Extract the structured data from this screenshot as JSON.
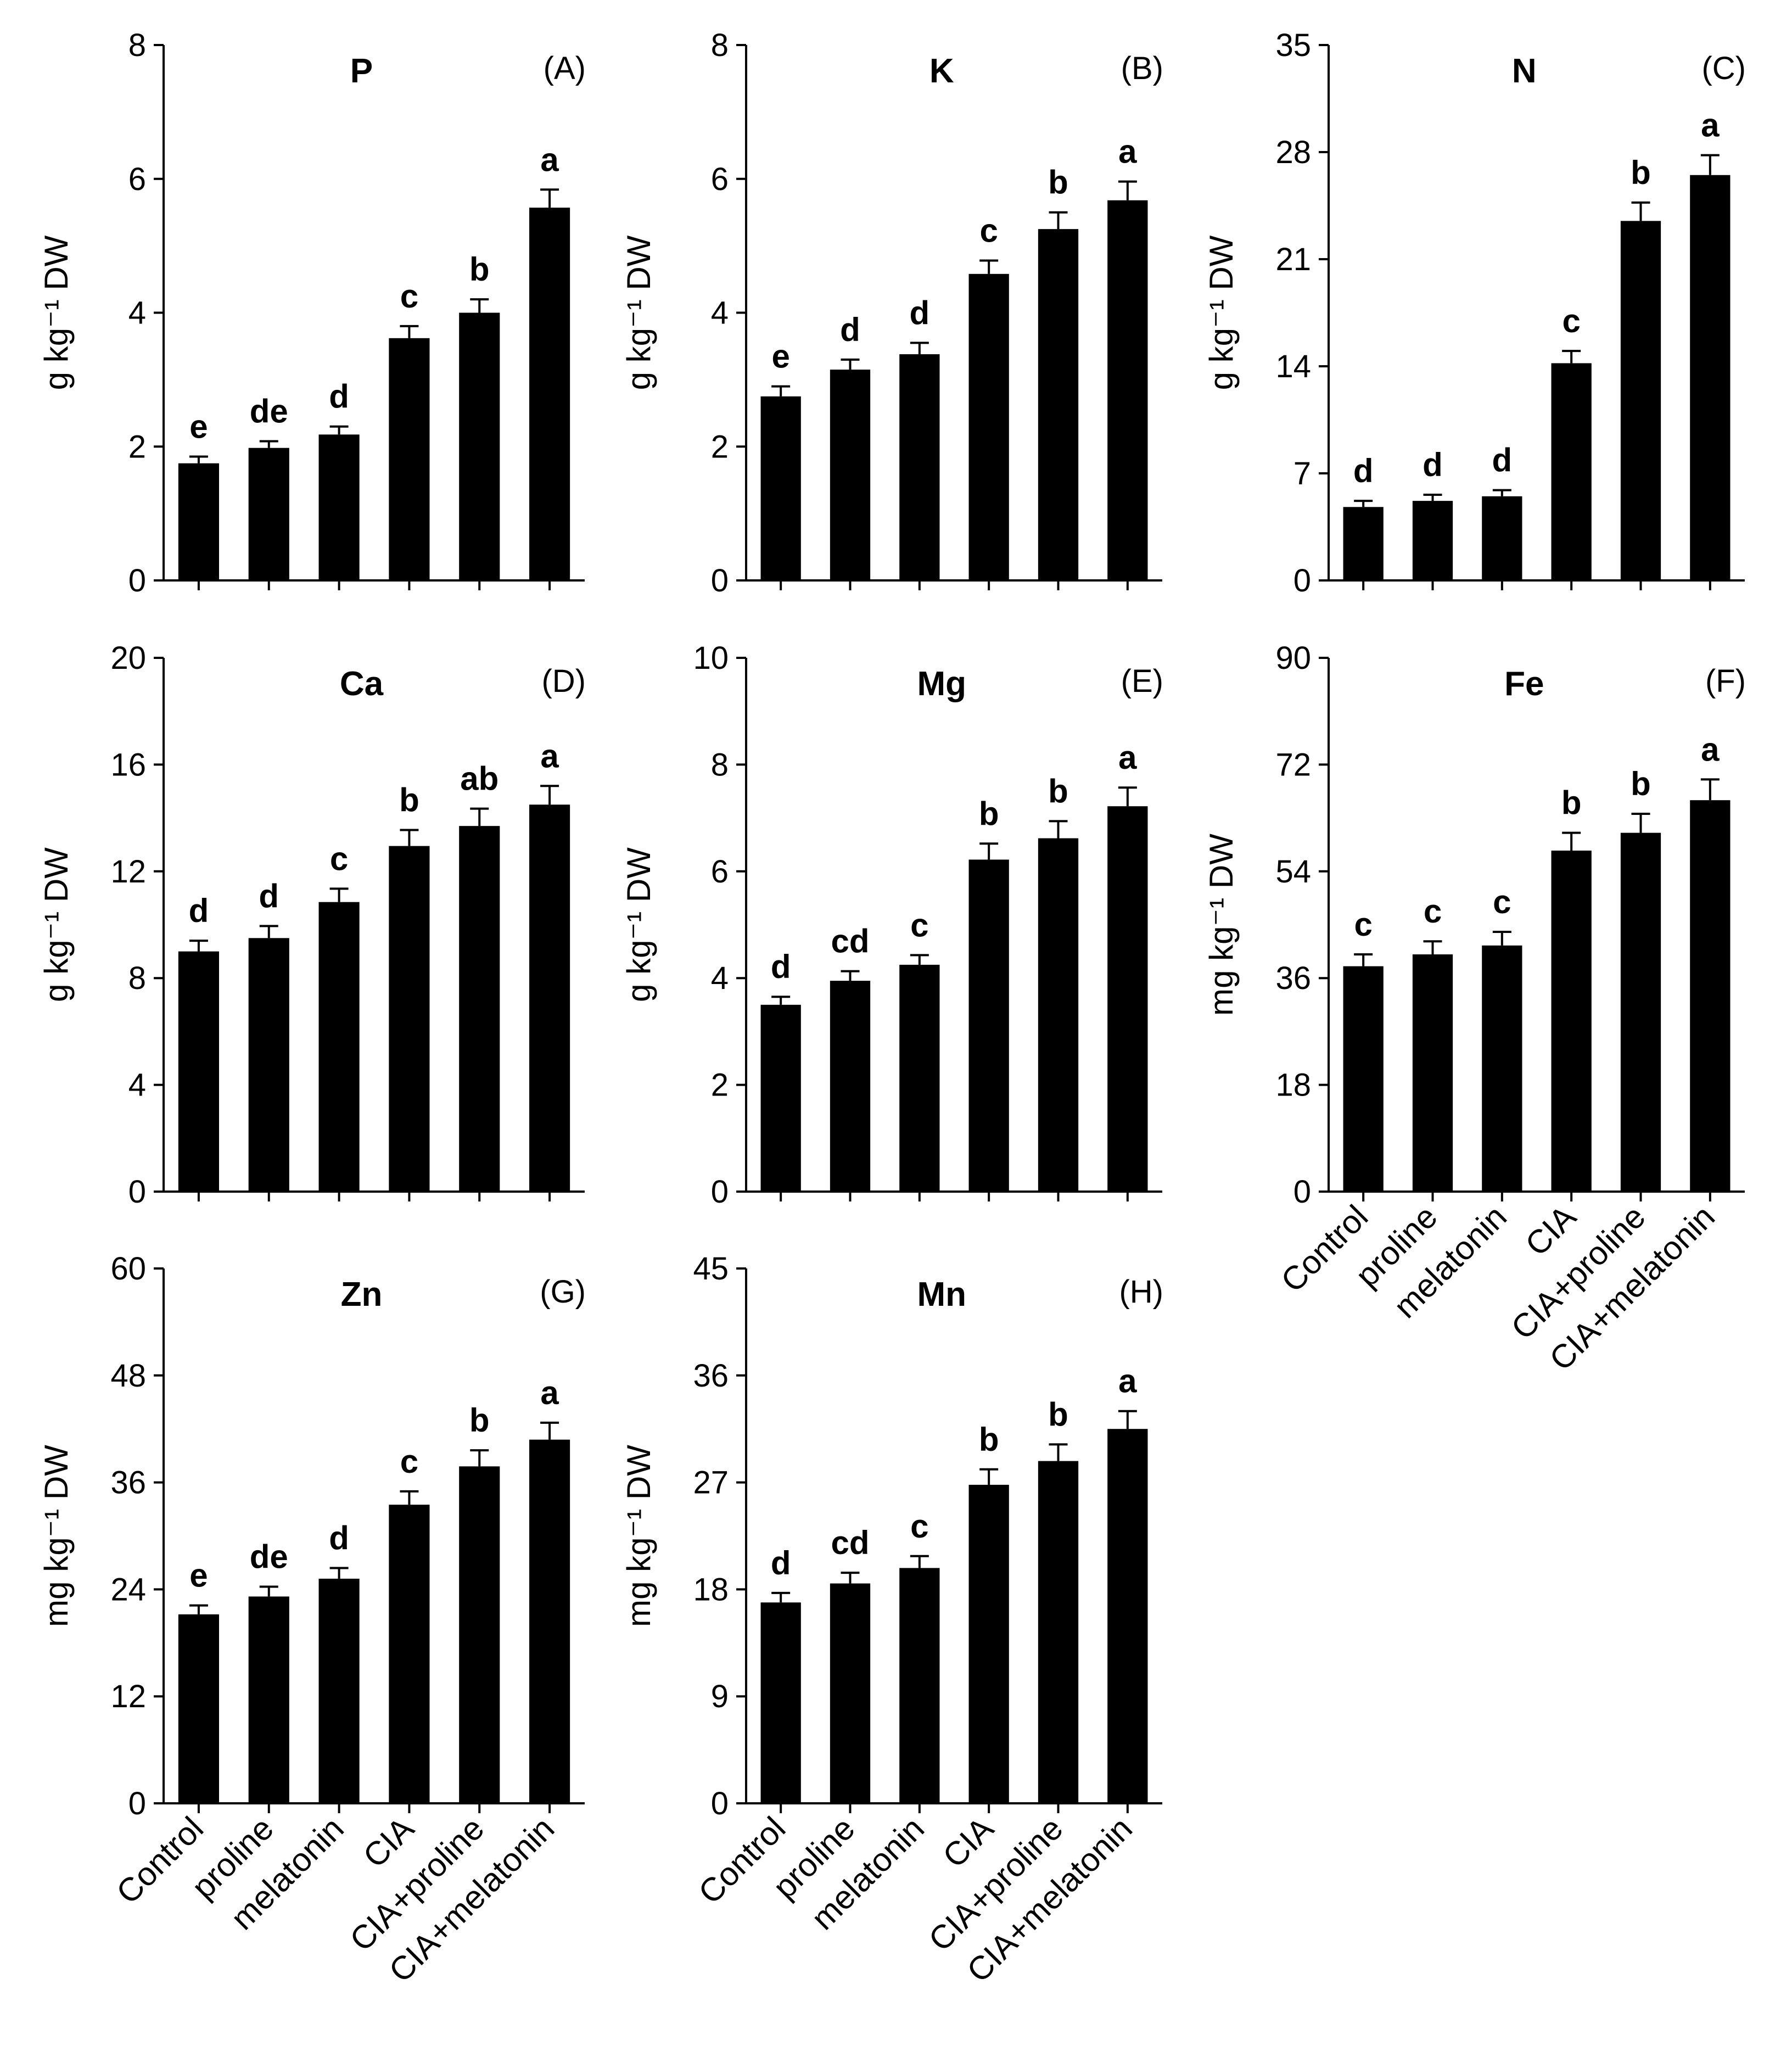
{
  "figure": {
    "categories": [
      "Control",
      "proline",
      "melatonin",
      "CIA",
      "CIA+proline",
      "CIA+melatonin"
    ]
  },
  "chart_data": [
    {
      "type": "bar",
      "panel": "(A)",
      "title": "P",
      "ylabel": "g kg⁻¹ DW",
      "ylim": [
        0,
        8
      ],
      "yticks": [
        0,
        2,
        4,
        6,
        8
      ],
      "categories": [
        "Control",
        "proline",
        "melatonin",
        "CIA",
        "CIA+proline",
        "CIA+melatonin"
      ],
      "values": [
        1.75,
        1.98,
        2.18,
        3.62,
        4.0,
        5.57
      ],
      "errors": [
        0.1,
        0.1,
        0.12,
        0.18,
        0.2,
        0.27
      ],
      "letters": [
        "e",
        "de",
        "d",
        "c",
        "b",
        "a"
      ],
      "show_x_labels": false
    },
    {
      "type": "bar",
      "panel": "(B)",
      "title": "K",
      "ylabel": "g kg⁻¹ DW",
      "ylim": [
        0,
        8
      ],
      "yticks": [
        0,
        2,
        4,
        6,
        8
      ],
      "categories": [
        "Control",
        "proline",
        "melatonin",
        "CIA",
        "CIA+proline",
        "CIA+melatonin"
      ],
      "values": [
        2.75,
        3.15,
        3.38,
        4.58,
        5.25,
        5.68
      ],
      "errors": [
        0.15,
        0.15,
        0.17,
        0.2,
        0.25,
        0.28
      ],
      "letters": [
        "e",
        "d",
        "d",
        "c",
        "b",
        "a"
      ],
      "show_x_labels": false
    },
    {
      "type": "bar",
      "panel": "(C)",
      "title": "N",
      "ylabel": "g kg⁻¹ DW",
      "ylim": [
        0,
        35
      ],
      "yticks": [
        0,
        7,
        14,
        21,
        28,
        35
      ],
      "categories": [
        "Control",
        "proline",
        "melatonin",
        "CIA",
        "CIA+proline",
        "CIA+melatonin"
      ],
      "values": [
        4.8,
        5.2,
        5.5,
        14.2,
        23.5,
        26.5
      ],
      "errors": [
        0.4,
        0.4,
        0.4,
        0.8,
        1.2,
        1.3
      ],
      "letters": [
        "d",
        "d",
        "d",
        "c",
        "b",
        "a"
      ],
      "show_x_labels": false
    },
    {
      "type": "bar",
      "panel": "(D)",
      "title": "Ca",
      "ylabel": "g kg⁻¹ DW",
      "ylim": [
        0,
        20
      ],
      "yticks": [
        0,
        4,
        8,
        12,
        16,
        20
      ],
      "categories": [
        "Control",
        "proline",
        "melatonin",
        "CIA",
        "CIA+proline",
        "CIA+melatonin"
      ],
      "values": [
        9.0,
        9.5,
        10.85,
        12.95,
        13.7,
        14.5
      ],
      "errors": [
        0.4,
        0.45,
        0.5,
        0.6,
        0.65,
        0.7
      ],
      "letters": [
        "d",
        "d",
        "c",
        "b",
        "ab",
        "a"
      ],
      "show_x_labels": false
    },
    {
      "type": "bar",
      "panel": "(E)",
      "title": "Mg",
      "ylabel": "g kg⁻¹ DW",
      "ylim": [
        0,
        10
      ],
      "yticks": [
        0,
        2,
        4,
        6,
        8,
        10
      ],
      "categories": [
        "Control",
        "proline",
        "melatonin",
        "CIA",
        "CIA+proline",
        "CIA+melatonin"
      ],
      "values": [
        3.5,
        3.95,
        4.25,
        6.22,
        6.62,
        7.22
      ],
      "errors": [
        0.15,
        0.18,
        0.18,
        0.3,
        0.32,
        0.35
      ],
      "letters": [
        "d",
        "cd",
        "c",
        "b",
        "b",
        "a"
      ],
      "show_x_labels": false
    },
    {
      "type": "bar",
      "panel": "(F)",
      "title": "Fe",
      "ylabel": "mg kg⁻¹ DW",
      "ylim": [
        0,
        90
      ],
      "yticks": [
        0,
        18,
        36,
        54,
        72,
        90
      ],
      "categories": [
        "Control",
        "proline",
        "melatonin",
        "CIA",
        "CIA+proline",
        "CIA+melatonin"
      ],
      "values": [
        38.0,
        40.0,
        41.5,
        57.5,
        60.5,
        66.0
      ],
      "errors": [
        2.0,
        2.2,
        2.3,
        3.0,
        3.2,
        3.5
      ],
      "letters": [
        "c",
        "c",
        "c",
        "b",
        "b",
        "a"
      ],
      "show_x_labels": true
    },
    {
      "type": "bar",
      "panel": "(G)",
      "title": "Zn",
      "ylabel": "mg kg⁻¹ DW",
      "ylim": [
        0,
        60
      ],
      "yticks": [
        0,
        12,
        24,
        36,
        48,
        60
      ],
      "categories": [
        "Control",
        "proline",
        "melatonin",
        "CIA",
        "CIA+proline",
        "CIA+melatonin"
      ],
      "values": [
        21.2,
        23.2,
        25.2,
        33.5,
        37.8,
        40.8
      ],
      "errors": [
        1.0,
        1.1,
        1.2,
        1.5,
        1.8,
        1.9
      ],
      "letters": [
        "e",
        "de",
        "d",
        "c",
        "b",
        "a"
      ],
      "show_x_labels": true
    },
    {
      "type": "bar",
      "panel": "(H)",
      "title": "Mn",
      "ylabel": "mg kg⁻¹ DW",
      "ylim": [
        0,
        45
      ],
      "yticks": [
        0,
        9,
        18,
        27,
        36,
        45
      ],
      "categories": [
        "Control",
        "proline",
        "melatonin",
        "CIA",
        "CIA+proline",
        "CIA+melatonin"
      ],
      "values": [
        16.9,
        18.5,
        19.8,
        26.8,
        28.8,
        31.5
      ],
      "errors": [
        0.8,
        0.9,
        1.0,
        1.3,
        1.4,
        1.5
      ],
      "letters": [
        "d",
        "cd",
        "c",
        "b",
        "b",
        "a"
      ],
      "show_x_labels": true
    }
  ]
}
